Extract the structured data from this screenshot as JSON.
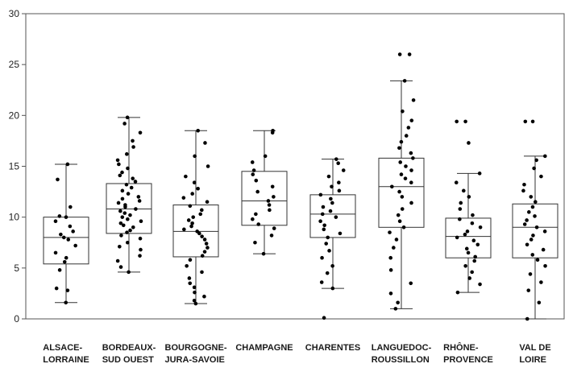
{
  "chart_data": {
    "type": "box",
    "title": "",
    "xlabel": "",
    "ylabel": "",
    "ylim": [
      0,
      30
    ],
    "yticks": [
      0,
      5,
      10,
      15,
      20,
      25,
      30
    ],
    "grid": false,
    "box_color": "#333333",
    "point_color": "#000000",
    "categories": [
      {
        "label": "ALSACE-\nLORRAINE",
        "min": 1.6,
        "q1": 5.4,
        "median": 8.0,
        "q3": 10.0,
        "max": 15.2,
        "points": [
          1.6,
          2.8,
          3.0,
          4.8,
          5.6,
          6.0,
          6.5,
          7.2,
          7.8,
          8.0,
          8.3,
          8.6,
          9.1,
          9.6,
          10.0,
          10.1,
          11.0,
          13.7,
          15.2
        ]
      },
      {
        "label": "BORDEAUX-\nSUD OUEST",
        "min": 4.6,
        "q1": 8.4,
        "median": 10.8,
        "q3": 13.3,
        "max": 19.8,
        "points": [
          4.6,
          5.1,
          5.7,
          6.2,
          6.8,
          7.1,
          7.5,
          7.9,
          8.2,
          8.5,
          8.7,
          9.0,
          9.2,
          9.4,
          9.6,
          9.8,
          10.0,
          10.2,
          10.4,
          10.6,
          10.8,
          11.0,
          11.2,
          11.4,
          11.6,
          11.8,
          12.0,
          12.3,
          12.6,
          12.9,
          13.2,
          13.5,
          13.8,
          14.1,
          14.4,
          14.8,
          15.2,
          15.6,
          16.2,
          16.9,
          17.5,
          18.3,
          19.2,
          19.8
        ]
      },
      {
        "label": "BOURGOGNE-\nJURA-SAVOIE",
        "min": 1.5,
        "q1": 6.1,
        "median": 8.6,
        "q3": 11.2,
        "max": 18.5,
        "points": [
          1.5,
          1.8,
          2.2,
          2.6,
          3.1,
          3.5,
          4.0,
          4.6,
          5.2,
          5.8,
          6.2,
          6.6,
          7.0,
          7.4,
          7.8,
          8.1,
          8.4,
          8.6,
          8.8,
          9.1,
          9.4,
          9.7,
          10.0,
          10.3,
          10.7,
          11.1,
          11.5,
          11.9,
          12.3,
          12.8,
          13.4,
          14.0,
          15.0,
          16.0,
          17.3,
          18.5
        ]
      },
      {
        "label": "CHAMPAGNE",
        "min": 6.4,
        "q1": 9.2,
        "median": 11.6,
        "q3": 14.5,
        "max": 18.5,
        "points": [
          6.4,
          7.5,
          8.2,
          8.9,
          9.3,
          9.8,
          10.3,
          10.7,
          11.2,
          11.6,
          12.0,
          12.5,
          13.0,
          13.6,
          14.2,
          14.6,
          15.4,
          16.0,
          18.3,
          18.5
        ]
      },
      {
        "label": "CHARENTES",
        "min": 3.0,
        "q1": 8.0,
        "median": 10.3,
        "q3": 12.2,
        "max": 15.7,
        "points": [
          0.1,
          3.0,
          3.6,
          4.5,
          5.2,
          6.0,
          6.7,
          7.4,
          8.0,
          8.4,
          8.8,
          9.2,
          9.6,
          10.0,
          10.3,
          10.6,
          11.0,
          11.4,
          11.8,
          12.2,
          12.6,
          13.0,
          13.4,
          14.0,
          14.6,
          15.3,
          15.7
        ]
      },
      {
        "label": "LANGUEDOC-\nROUSSILLON",
        "min": 1.0,
        "q1": 9.0,
        "median": 13.0,
        "q3": 15.8,
        "max": 23.4,
        "points": [
          1.0,
          1.6,
          2.5,
          3.5,
          4.8,
          6.0,
          7.0,
          7.8,
          8.5,
          9.0,
          9.6,
          10.2,
          10.8,
          11.4,
          12.0,
          12.5,
          13.0,
          13.4,
          13.8,
          14.2,
          14.6,
          15.0,
          15.4,
          15.8,
          16.3,
          16.8,
          17.4,
          18.0,
          18.8,
          19.5,
          20.4,
          21.5,
          23.4,
          26.0,
          26.0
        ]
      },
      {
        "label": "RHÔNE-\nPROVENCE",
        "min": 2.6,
        "q1": 6.0,
        "median": 8.1,
        "q3": 9.9,
        "max": 14.3,
        "points": [
          2.6,
          3.4,
          4.0,
          4.6,
          5.2,
          5.7,
          6.1,
          6.5,
          6.9,
          7.3,
          7.7,
          8.0,
          8.3,
          8.6,
          9.0,
          9.4,
          9.8,
          10.2,
          10.8,
          11.4,
          12.0,
          12.6,
          13.4,
          14.3,
          17.3,
          19.4,
          19.4
        ]
      },
      {
        "label": "VAL DE\nLOIRE",
        "min": 0.0,
        "q1": 6.0,
        "median": 9.0,
        "q3": 11.3,
        "max": 16.0,
        "points": [
          0.0,
          1.6,
          2.8,
          3.6,
          4.4,
          5.2,
          5.8,
          6.3,
          6.8,
          7.3,
          7.8,
          8.2,
          8.6,
          9.0,
          9.3,
          9.7,
          10.1,
          10.5,
          11.0,
          11.5,
          12.0,
          12.6,
          13.2,
          14.0,
          14.8,
          15.6,
          16.0,
          19.4,
          19.4
        ]
      }
    ]
  }
}
